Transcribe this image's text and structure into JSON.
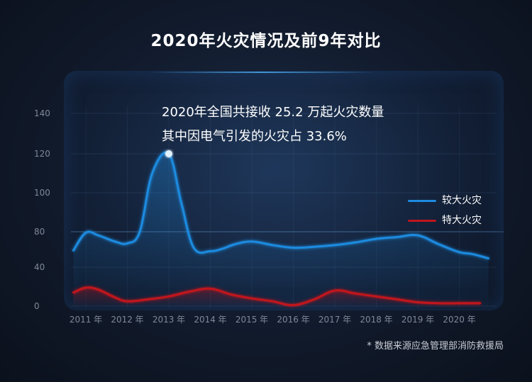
{
  "title": "2020年火灾情况及前9年对比",
  "annotation": {
    "line1": "2020年全国共接收 25.2 万起火灾数量",
    "line2": "其中因电气引发的火灾占 33.6%"
  },
  "source": "* 数据来源应急管理部消防救援局",
  "chart_data": {
    "type": "line",
    "title": "2020年火灾情况及前9年对比",
    "xlabel": "",
    "ylabel": "",
    "categories": [
      "2011 年",
      "2012 年",
      "2013 年",
      "2014 年",
      "2015 年",
      "2016 年",
      "2017 年",
      "2018 年",
      "2019 年",
      "2020 年"
    ],
    "ylim": [
      0,
      140
    ],
    "yticks": [
      0,
      40,
      80,
      100,
      120,
      140
    ],
    "grid": true,
    "legend_position": "right",
    "series": [
      {
        "name": "较大火灾",
        "color": "#1e8be0",
        "x": [
          2010.7,
          2011,
          2011.3,
          2011.7,
          2012,
          2012.3,
          2012.6,
          2013,
          2013.3,
          2013.6,
          2014,
          2014.3,
          2014.6,
          2015,
          2015.5,
          2016,
          2016.5,
          2017,
          2017.5,
          2018,
          2018.5,
          2019,
          2019.5,
          2020,
          2020.3,
          2020.7
        ],
        "y": [
          59,
          79,
          76,
          69,
          67,
          80,
          110,
          120,
          95,
          62,
          58,
          61,
          66,
          69,
          65,
          62,
          63,
          65,
          68,
          72,
          74,
          76,
          66,
          57,
          55,
          50
        ]
      },
      {
        "name": "特大火灾",
        "color": "#c2141e",
        "x": [
          2010.7,
          2011,
          2011.3,
          2011.7,
          2012,
          2012.5,
          2013,
          2013.5,
          2014,
          2014.5,
          2015,
          2015.5,
          2016,
          2016.5,
          2017,
          2017.5,
          2018,
          2018.5,
          2019,
          2019.5,
          2020,
          2020.5
        ],
        "y": [
          14,
          19,
          17,
          9,
          5,
          7,
          10,
          15,
          18,
          12,
          8,
          5,
          1,
          7,
          16,
          13,
          10,
          7,
          4,
          3,
          3,
          3
        ]
      }
    ]
  }
}
